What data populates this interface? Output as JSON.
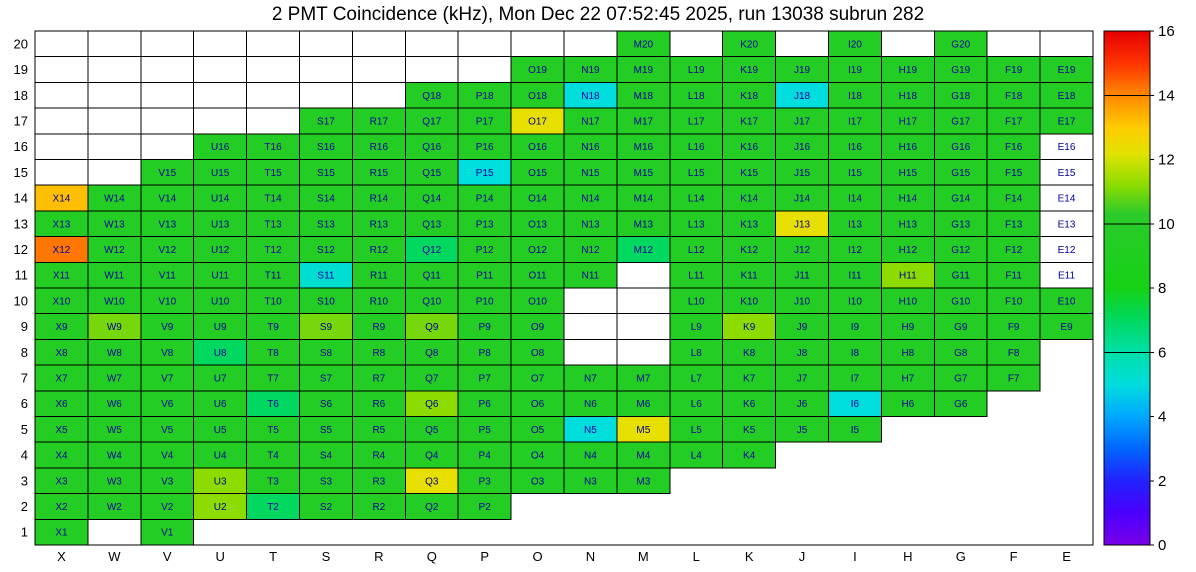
{
  "chart_data": {
    "type": "heatmap",
    "title": "2 PMT Coincidence (kHz), Mon Dec 22 07:52:45 2025, run 13038 subrun 282",
    "unit": "kHz",
    "columns": [
      "X",
      "W",
      "V",
      "U",
      "T",
      "S",
      "R",
      "Q",
      "P",
      "O",
      "N",
      "M",
      "L",
      "K",
      "J",
      "I",
      "H",
      "G",
      "F",
      "E"
    ],
    "rows": [
      20,
      19,
      18,
      17,
      16,
      15,
      14,
      13,
      12,
      11,
      10,
      9,
      8,
      7,
      6,
      5,
      4,
      3,
      2,
      1
    ],
    "colorbar": {
      "min": 0,
      "max": 16,
      "tick_labels": [
        0,
        2,
        4,
        6,
        8,
        10,
        12,
        14,
        16
      ],
      "inner_lines": [
        6,
        10,
        14
      ]
    },
    "palette_stops": [
      [
        0,
        "#7A00E8"
      ],
      [
        1,
        "#4A00FF"
      ],
      [
        2,
        "#2222FF"
      ],
      [
        3,
        "#0066FF"
      ],
      [
        4,
        "#00A8FF"
      ],
      [
        5,
        "#00DDDD"
      ],
      [
        6,
        "#00E0A8"
      ],
      [
        7,
        "#00D860"
      ],
      [
        8,
        "#16D216"
      ],
      [
        10.3,
        "#2BCB2B"
      ],
      [
        11.2,
        "#8CDC00"
      ],
      [
        12.2,
        "#E2E200"
      ],
      [
        13,
        "#FFCC00"
      ],
      [
        14,
        "#FF8800"
      ],
      [
        15,
        "#FF3300"
      ],
      [
        16,
        "#E60000"
      ]
    ],
    "colors": {
      "cell_label": "#000099",
      "axis_label": "#000000",
      "grid_line": "#000000",
      "background": "#ffffff"
    },
    "values": {
      "M20": 9.5,
      "K20": 9.5,
      "I20": 9.5,
      "G20": 9.5,
      "O19": 9.5,
      "N19": 9.5,
      "M19": 9.5,
      "L19": 9.5,
      "K19": 9.5,
      "J19": 9.5,
      "I19": 9.5,
      "H19": 9.5,
      "G19": 9.5,
      "F19": 9.5,
      "E19": 9.5,
      "Q18": 9.5,
      "P18": 9.5,
      "O18": 9.5,
      "N18": 5,
      "M18": 9.5,
      "L18": 9.5,
      "K18": 9.5,
      "J18": 5,
      "I18": 9.5,
      "H18": 9.5,
      "G18": 9.5,
      "F18": 9.5,
      "E18": 9.5,
      "S17": 9.5,
      "R17": 9.5,
      "Q17": 9.5,
      "P17": 9.5,
      "O17": 12.3,
      "N17": 9.5,
      "M17": 9.5,
      "L17": 9.5,
      "K17": 9.5,
      "J17": 9.5,
      "I17": 9.5,
      "H17": 9.5,
      "G17": 9.5,
      "F17": 9.5,
      "E17": 9.5,
      "U16": 9.5,
      "T16": 9.5,
      "S16": 9.5,
      "R16": 9.5,
      "Q16": 9.5,
      "P16": 9.5,
      "O16": 9.5,
      "N16": 9.5,
      "M16": 9.5,
      "L16": 9.5,
      "K16": 9.5,
      "J16": 9.5,
      "I16": 9.5,
      "H16": 9.5,
      "G16": 9.5,
      "F16": 9.5,
      "V15": 9.5,
      "U15": 9.5,
      "T15": 9.5,
      "S15": 9.5,
      "R15": 9.5,
      "Q15": 9.5,
      "P15": 5,
      "O15": 9.5,
      "N15": 9.5,
      "M15": 9.5,
      "L15": 9.5,
      "K15": 9.5,
      "J15": 9.5,
      "I15": 9.5,
      "H15": 9.5,
      "G15": 9.5,
      "F15": 9.5,
      "X14": 13.2,
      "W14": 9.5,
      "V14": 9.5,
      "U14": 9.5,
      "T14": 9.5,
      "S14": 9.5,
      "R14": 9.5,
      "Q14": 9.5,
      "P14": 9.5,
      "O14": 9.5,
      "N14": 9.5,
      "M14": 9.5,
      "L14": 9.5,
      "K14": 9.5,
      "J14": 9.5,
      "I14": 9.5,
      "H14": 9.5,
      "G14": 9.5,
      "F14": 9.5,
      "X13": 9.5,
      "W13": 9.5,
      "V13": 9.5,
      "U13": 9.5,
      "T13": 9.5,
      "S13": 9.5,
      "R13": 9.5,
      "Q13": 9.5,
      "P13": 9.5,
      "O13": 9.5,
      "N13": 9.5,
      "M13": 9.5,
      "L13": 9.5,
      "K13": 9.5,
      "J13": 12.3,
      "I13": 9.5,
      "H13": 9.5,
      "G13": 9.5,
      "F13": 9.5,
      "X12": 14.2,
      "W12": 9.5,
      "V12": 9.5,
      "U12": 9.5,
      "T12": 9.5,
      "S12": 9.5,
      "R12": 9.5,
      "Q12": 7,
      "P12": 9.5,
      "O12": 9.5,
      "N12": 9.5,
      "M12": 7,
      "L12": 9.5,
      "K12": 9.5,
      "J12": 9.5,
      "I12": 9.5,
      "H12": 9.5,
      "G12": 9.5,
      "F12": 9.5,
      "X11": 9.5,
      "W11": 9.5,
      "V11": 9.5,
      "U11": 9.5,
      "T11": 9.5,
      "S11": 5.2,
      "R11": 9.5,
      "Q11": 9.5,
      "P11": 9.5,
      "O11": 9.5,
      "N11": 9.5,
      "L11": 9.5,
      "K11": 9.5,
      "J11": 9.5,
      "I11": 9.5,
      "H11": 11.2,
      "G11": 9.5,
      "F11": 9.5,
      "X10": 9.5,
      "W10": 9.5,
      "V10": 9.5,
      "U10": 9.5,
      "T10": 9.5,
      "S10": 9.5,
      "R10": 9.5,
      "Q10": 9.5,
      "P10": 9.5,
      "O10": 9.5,
      "L10": 9.5,
      "K10": 9.5,
      "J10": 9.5,
      "I10": 9.5,
      "H10": 9.5,
      "G10": 9.5,
      "F10": 9.5,
      "E10": 9.5,
      "X9": 9.5,
      "W9": 11,
      "V9": 9.5,
      "U9": 9.5,
      "T9": 9.5,
      "S9": 11,
      "R9": 9.5,
      "Q9": 11,
      "P9": 9.5,
      "O9": 9.5,
      "L9": 9.5,
      "K9": 11.2,
      "J9": 9.5,
      "I9": 9.5,
      "H9": 9.5,
      "G9": 9.5,
      "F9": 9.5,
      "E9": 9.5,
      "X8": 9.5,
      "W8": 9.5,
      "V8": 9.5,
      "U8": 7,
      "T8": 9.5,
      "S8": 9.5,
      "R8": 9.5,
      "Q8": 9.5,
      "P8": 9.5,
      "O8": 9.5,
      "L8": 9.5,
      "K8": 9.5,
      "J8": 9.5,
      "I8": 9.5,
      "H8": 9.5,
      "G8": 9.5,
      "F8": 9.5,
      "X7": 9.5,
      "W7": 9.5,
      "V7": 9.5,
      "U7": 9.5,
      "T7": 9.5,
      "S7": 9.5,
      "R7": 9.5,
      "Q7": 9.5,
      "P7": 9.5,
      "O7": 9.5,
      "N7": 9.5,
      "M7": 9.5,
      "L7": 9.5,
      "K7": 9.5,
      "J7": 9.5,
      "I7": 9.5,
      "H7": 9.5,
      "G7": 9.5,
      "F7": 9.5,
      "X6": 9.5,
      "W6": 9.5,
      "V6": 9.5,
      "U6": 9.5,
      "T6": 7,
      "S6": 9.5,
      "R6": 9.5,
      "Q6": 11.2,
      "P6": 9.5,
      "O6": 9.5,
      "N6": 9.5,
      "M6": 9.5,
      "L6": 9.5,
      "K6": 9.5,
      "J6": 9.5,
      "I6": 5,
      "H6": 9.5,
      "G6": 9.5,
      "X5": 9.5,
      "W5": 9.5,
      "V5": 9.5,
      "U5": 9.5,
      "T5": 9.5,
      "S5": 9.5,
      "R5": 9.5,
      "Q5": 9.5,
      "P5": 9.5,
      "O5": 9.5,
      "N5": 5,
      "M5": 12.3,
      "L5": 9.5,
      "K5": 9.5,
      "J5": 9.5,
      "I5": 9.5,
      "X4": 9.5,
      "W4": 9.5,
      "V4": 9.5,
      "U4": 9.5,
      "T4": 9.5,
      "S4": 9.5,
      "R4": 9.5,
      "Q4": 9.5,
      "P4": 9.5,
      "O4": 9.5,
      "N4": 9.5,
      "M4": 9.5,
      "L4": 9.5,
      "K4": 9.5,
      "X3": 9.5,
      "W3": 9.5,
      "V3": 9.5,
      "U3": 11.2,
      "T3": 9.5,
      "S3": 9.5,
      "R3": 9.5,
      "Q3": 12.3,
      "P3": 9.5,
      "O3": 9.5,
      "N3": 9.5,
      "M3": 9.5,
      "X2": 9.5,
      "W2": 9.5,
      "V2": 9.5,
      "U2": 11.2,
      "T2": 7,
      "S2": 9.5,
      "R2": 9.5,
      "Q2": 9.5,
      "P2": 9.5,
      "X1": 9.5,
      "V1": 9.5
    },
    "empty_labeled_cells": [
      "E16",
      "E15",
      "E14",
      "E13",
      "E12",
      "E11"
    ],
    "outlined_empty_cells": [
      "X20",
      "W20",
      "V20",
      "U20",
      "T20",
      "S20",
      "R20",
      "Q20",
      "P20",
      "O20",
      "N20",
      "L20",
      "J20",
      "H20",
      "F20",
      "E20",
      "X19",
      "W19",
      "V19",
      "U19",
      "T19",
      "S19",
      "R19",
      "Q19",
      "P19",
      "X18",
      "W18",
      "V18",
      "U18",
      "T18",
      "S18",
      "R18",
      "X17",
      "W17",
      "V17",
      "U17",
      "T17",
      "X16",
      "W16",
      "V16",
      "X15",
      "W15",
      "M11",
      "N10",
      "M10",
      "N9",
      "M9",
      "N8",
      "M8"
    ]
  }
}
